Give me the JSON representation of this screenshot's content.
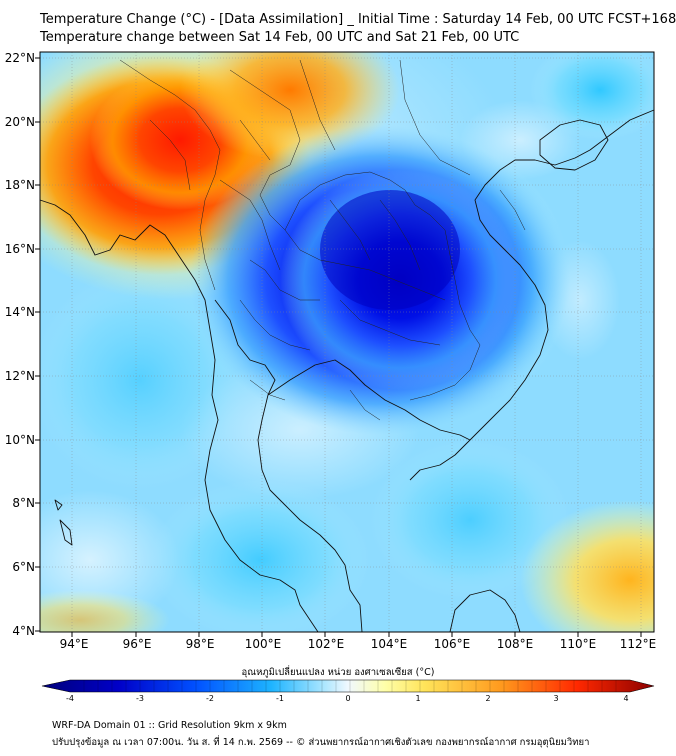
{
  "header": {
    "title_line1": "Temperature Change (°C) - [Data Assimilation] _ Initial Time : Saturday 14 Feb, 00 UTC FCST+168",
    "title_line2": "Temperature change between Sat 14 Feb, 00 UTC and Sat 21 Feb, 00 UTC"
  },
  "map": {
    "lat_labels": [
      "22°N",
      "20°N",
      "18°N",
      "16°N",
      "14°N",
      "12°N",
      "10°N",
      "8°N",
      "6°N",
      "4°N"
    ],
    "lon_labels": [
      "94°E",
      "96°E",
      "98°E",
      "100°E",
      "102°E",
      "104°E",
      "106°E",
      "108°E",
      "110°E",
      "112°E"
    ],
    "lat_range": [
      4,
      22.3
    ],
    "lon_range": [
      93,
      113.3
    ],
    "features": [
      {
        "name": "warm-anomaly-myanmar",
        "value": 3.5,
        "lon": 95.5,
        "lat": 19.5
      },
      {
        "name": "warm-anomaly-yunnan",
        "value": 2.5,
        "lon": 99,
        "lat": 21.5
      },
      {
        "name": "cold-anomaly-thailand-cambodia",
        "value": -3.8,
        "lon": 104,
        "lat": 15.2
      },
      {
        "name": "warm-anomaly-south-china-sea",
        "value": 2.0,
        "lon": 112,
        "lat": 5.5
      }
    ]
  },
  "colorbar": {
    "label": "อุณหภูมิเปลี่ยนแปลง หน่วย องศาเซลเซียส (°C)",
    "ticks": [
      "-4",
      "-3",
      "-2",
      "-1",
      "0",
      "1",
      "2",
      "3",
      "4"
    ],
    "min": -4,
    "max": 4,
    "colors": {
      "very_cold": "#00007a",
      "cold": "#0000ee",
      "cool": "#1e90ff",
      "light_cool": "#87cefa",
      "neutral": "#f0f8ff",
      "warm": "#ffff66",
      "hot": "#ff4500",
      "very_hot": "#8b0000"
    }
  },
  "footer": {
    "line1": "WRF-DA Domain 01 :: Grid Resolution 9km x 9km",
    "line2": "ปรับปรุงข้อมูล ณ เวลา 07:00น. วัน ส. ที่ 14 ก.พ. 2569 -- © ส่วนพยากรณ์อากาศเชิงตัวเลข กองพยากรณ์อากาศ กรมอุตุนิยมวิทยา"
  }
}
